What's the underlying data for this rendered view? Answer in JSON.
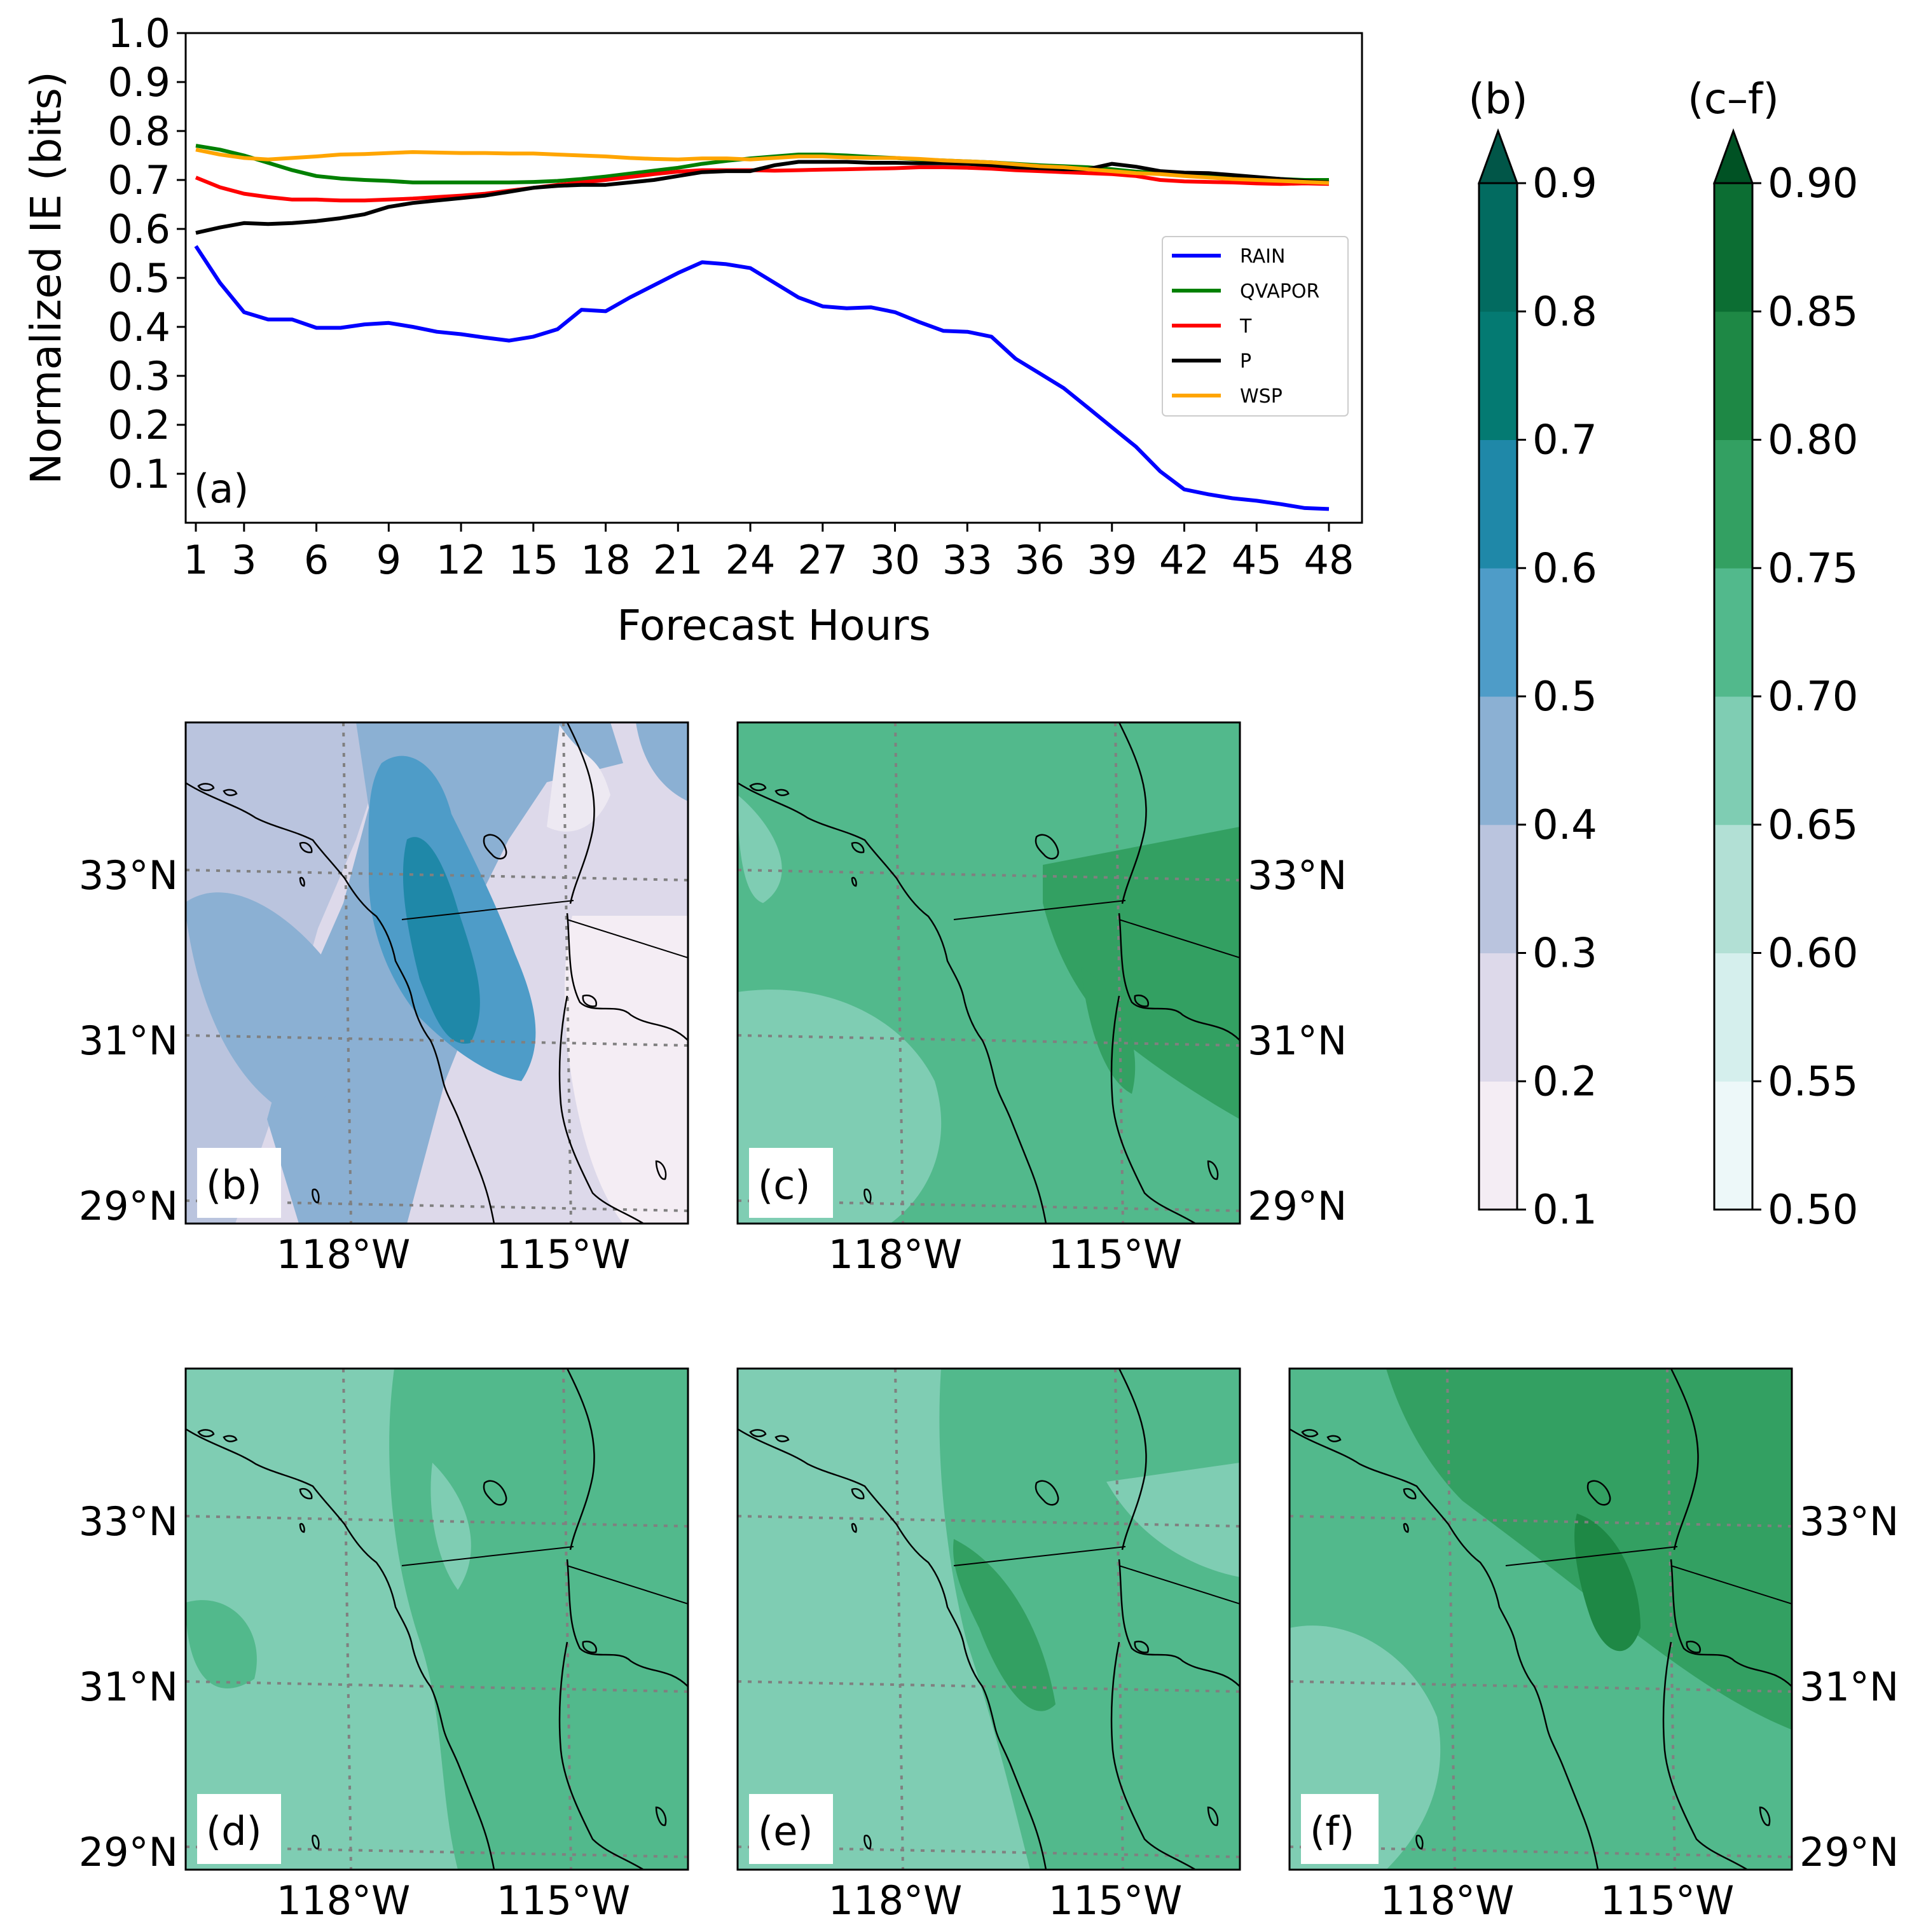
{
  "chart_data": [
    {
      "type": "line",
      "panel_label": "(a)",
      "xlabel": "Forecast Hours",
      "ylabel": "Normalized IE (bits)",
      "xlim": [
        1,
        48
      ],
      "ylim": [
        0,
        1.0
      ],
      "xticks": [
        1,
        3,
        6,
        9,
        12,
        15,
        18,
        21,
        24,
        27,
        30,
        33,
        36,
        39,
        42,
        45,
        48
      ],
      "yticks": [
        0.1,
        0.2,
        0.3,
        0.4,
        0.5,
        0.6,
        0.7,
        0.8,
        0.9,
        1.0
      ],
      "ytick_labels": [
        "0.1",
        "0.2",
        "0.3",
        "0.4",
        "0.5",
        "0.6",
        "0.7",
        "0.8",
        "0.9",
        "1.0"
      ],
      "legend_position": "center-right",
      "x": [
        1,
        2,
        3,
        4,
        5,
        6,
        7,
        8,
        9,
        10,
        11,
        12,
        13,
        14,
        15,
        16,
        17,
        18,
        19,
        20,
        21,
        22,
        23,
        24,
        25,
        26,
        27,
        28,
        29,
        30,
        31,
        32,
        33,
        34,
        35,
        36,
        37,
        38,
        39,
        40,
        41,
        42,
        43,
        44,
        45,
        46,
        47,
        48
      ],
      "series": [
        {
          "name": "RAIN",
          "color": "#0000ff",
          "values": [
            0.565,
            0.49,
            0.43,
            0.415,
            0.415,
            0.398,
            0.398,
            0.405,
            0.408,
            0.4,
            0.39,
            0.385,
            0.378,
            0.372,
            0.38,
            0.395,
            0.435,
            0.432,
            0.46,
            0.485,
            0.51,
            0.532,
            0.528,
            0.52,
            0.49,
            0.46,
            0.442,
            0.438,
            0.44,
            0.43,
            0.41,
            0.392,
            0.39,
            0.38,
            0.335,
            0.305,
            0.275,
            0.235,
            0.195,
            0.155,
            0.105,
            0.068,
            0.058,
            0.05,
            0.045,
            0.038,
            0.03,
            0.028
          ]
        },
        {
          "name": "QVAPOR",
          "color": "#008000",
          "values": [
            0.77,
            0.762,
            0.75,
            0.735,
            0.72,
            0.708,
            0.703,
            0.7,
            0.698,
            0.695,
            0.695,
            0.695,
            0.695,
            0.695,
            0.696,
            0.698,
            0.702,
            0.707,
            0.713,
            0.719,
            0.725,
            0.733,
            0.739,
            0.744,
            0.748,
            0.752,
            0.752,
            0.75,
            0.747,
            0.745,
            0.742,
            0.74,
            0.738,
            0.736,
            0.733,
            0.73,
            0.728,
            0.726,
            0.722,
            0.717,
            0.714,
            0.712,
            0.71,
            0.708,
            0.705,
            0.702,
            0.7,
            0.7
          ]
        },
        {
          "name": "T",
          "color": "#ff0000",
          "values": [
            0.705,
            0.685,
            0.672,
            0.665,
            0.66,
            0.66,
            0.658,
            0.658,
            0.66,
            0.662,
            0.665,
            0.668,
            0.672,
            0.678,
            0.684,
            0.69,
            0.695,
            0.7,
            0.706,
            0.712,
            0.717,
            0.72,
            0.72,
            0.72,
            0.719,
            0.72,
            0.721,
            0.722,
            0.723,
            0.724,
            0.726,
            0.726,
            0.725,
            0.723,
            0.72,
            0.718,
            0.716,
            0.714,
            0.712,
            0.708,
            0.7,
            0.697,
            0.696,
            0.695,
            0.693,
            0.692,
            0.693,
            0.692
          ]
        },
        {
          "name": "P",
          "color": "#000000",
          "values": [
            0.592,
            0.603,
            0.612,
            0.61,
            0.612,
            0.616,
            0.622,
            0.63,
            0.645,
            0.653,
            0.658,
            0.663,
            0.668,
            0.676,
            0.684,
            0.688,
            0.69,
            0.69,
            0.695,
            0.7,
            0.708,
            0.716,
            0.718,
            0.718,
            0.73,
            0.737,
            0.737,
            0.737,
            0.735,
            0.735,
            0.734,
            0.734,
            0.733,
            0.73,
            0.726,
            0.724,
            0.722,
            0.722,
            0.733,
            0.727,
            0.718,
            0.715,
            0.714,
            0.71,
            0.706,
            0.702,
            0.698,
            0.695
          ]
        },
        {
          "name": "WSP",
          "color": "#ffa500",
          "values": [
            0.762,
            0.752,
            0.745,
            0.742,
            0.745,
            0.748,
            0.752,
            0.753,
            0.755,
            0.757,
            0.756,
            0.755,
            0.755,
            0.754,
            0.754,
            0.752,
            0.75,
            0.748,
            0.745,
            0.743,
            0.742,
            0.744,
            0.744,
            0.742,
            0.745,
            0.748,
            0.748,
            0.746,
            0.745,
            0.745,
            0.743,
            0.74,
            0.738,
            0.736,
            0.732,
            0.728,
            0.726,
            0.722,
            0.718,
            0.714,
            0.712,
            0.708,
            0.705,
            0.702,
            0.7,
            0.698,
            0.696,
            0.694
          ]
        }
      ]
    },
    {
      "type": "heatmap",
      "panels": [
        "(b)",
        "(c)",
        "(d)",
        "(e)",
        "(f)"
      ],
      "lat_ticks": [
        "29°N",
        "31°N",
        "33°N"
      ],
      "lon_ticks": [
        "118°W",
        "115°W"
      ],
      "colorbars": [
        {
          "title": "(b)",
          "extend": "max",
          "levels": [
            0.1,
            0.2,
            0.3,
            0.4,
            0.5,
            0.6,
            0.7,
            0.8,
            0.9
          ],
          "tick_labels": [
            "0.1",
            "0.2",
            "0.3",
            "0.4",
            "0.5",
            "0.6",
            "0.7",
            "0.8",
            "0.9"
          ],
          "colors": [
            "#f4edf4",
            "#ddd9ea",
            "#bac4de",
            "#8bb0d3",
            "#4e9cc8",
            "#1f88a8",
            "#047a72",
            "#026b60",
            "#015648"
          ]
        },
        {
          "title": "(c–f)",
          "extend": "max",
          "levels": [
            0.5,
            0.55,
            0.6,
            0.65,
            0.7,
            0.75,
            0.8,
            0.85,
            0.9
          ],
          "tick_labels": [
            "0.50",
            "0.55",
            "0.60",
            "0.65",
            "0.70",
            "0.75",
            "0.80",
            "0.85",
            "0.90"
          ],
          "colors": [
            "#edf8f9",
            "#d5efed",
            "#b2e0d5",
            "#7fcdb3",
            "#52b98c",
            "#33a062",
            "#1e8845",
            "#0c6e33",
            "#005224"
          ]
        }
      ]
    }
  ]
}
